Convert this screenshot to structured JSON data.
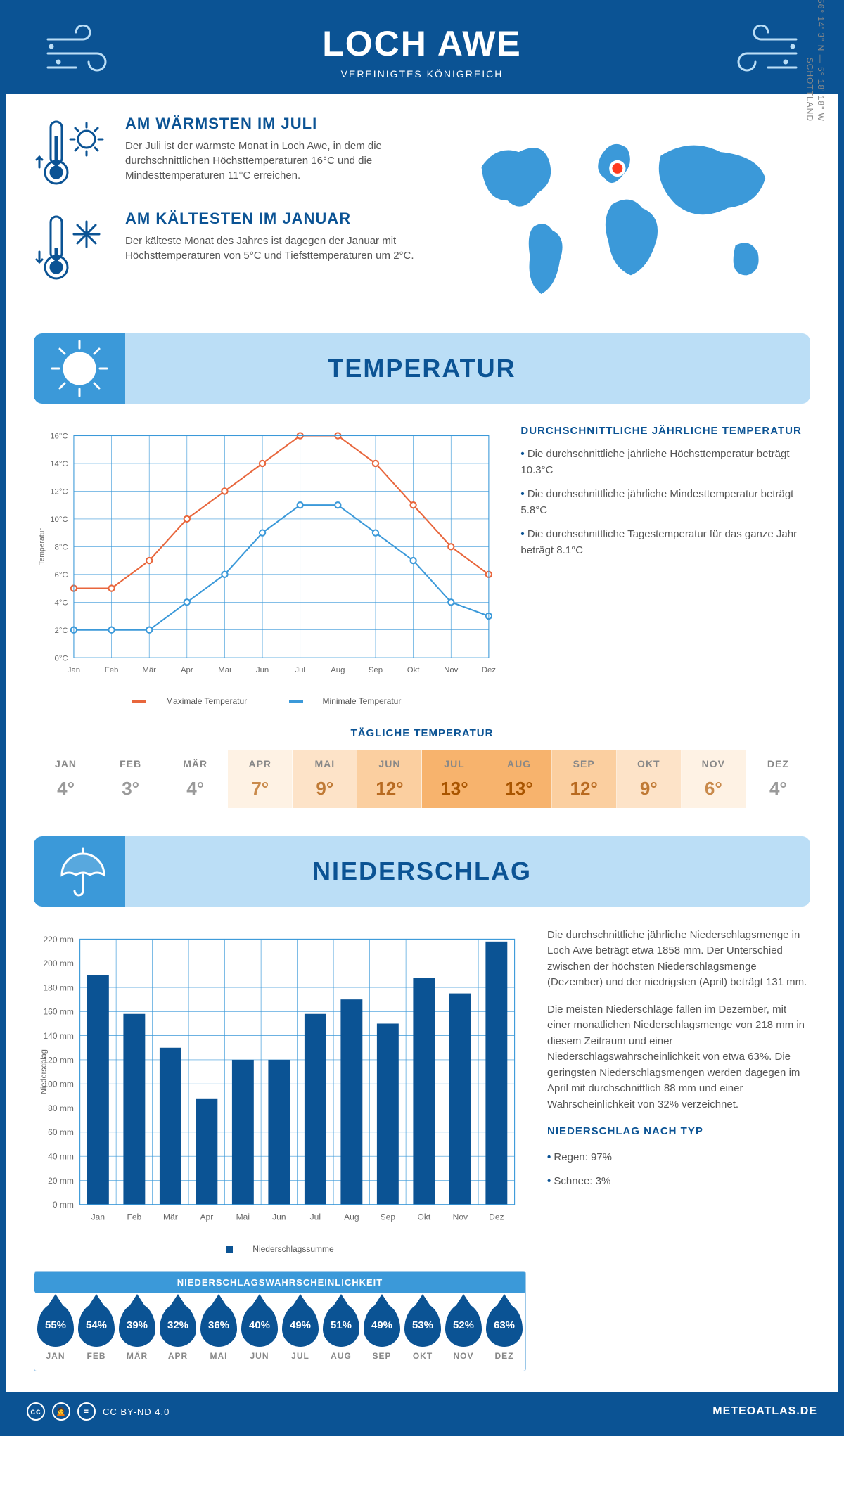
{
  "header": {
    "title": "LOCH AWE",
    "subtitle": "VEREINIGTES KÖNIGREICH"
  },
  "location": {
    "coords": "56° 14' 3\" N — 5° 18' 18\" W",
    "region": "SCHOTTLAND",
    "marker_color": "#ff3b1f",
    "map_color": "#3b99d9"
  },
  "colors": {
    "primary": "#0b5394",
    "accent": "#3b99d9",
    "band_light": "#bbdef6",
    "text_muted": "#777777",
    "max_temp_line": "#e8663c",
    "min_temp_line": "#3b99d9",
    "grid": "#3b99d9"
  },
  "facts": {
    "warmest": {
      "title": "AM WÄRMSTEN IM JULI",
      "text": "Der Juli ist der wärmste Monat in Loch Awe, in dem die durchschnittlichen Höchsttemperaturen 16°C und die Mindesttemperaturen 11°C erreichen."
    },
    "coldest": {
      "title": "AM KÄLTESTEN IM JANUAR",
      "text": "Der kälteste Monat des Jahres ist dagegen der Januar mit Höchsttemperaturen von 5°C und Tiefsttemperaturen um 2°C."
    }
  },
  "temperature": {
    "section_title": "TEMPERATUR",
    "facts_title": "DURCHSCHNITTLICHE JÄHRLICHE TEMPERATUR",
    "facts": [
      "Die durchschnittliche jährliche Höchsttemperatur beträgt 10.3°C",
      "Die durchschnittliche jährliche Mindesttemperatur beträgt 5.8°C",
      "Die durchschnittliche Tagestemperatur für das ganze Jahr beträgt 8.1°C"
    ],
    "chart": {
      "type": "line",
      "months": [
        "Jan",
        "Feb",
        "Mär",
        "Apr",
        "Mai",
        "Jun",
        "Jul",
        "Aug",
        "Sep",
        "Okt",
        "Nov",
        "Dez"
      ],
      "max_series": [
        5,
        5,
        7,
        10,
        12,
        14,
        16,
        16,
        14,
        11,
        8,
        6
      ],
      "min_series": [
        2,
        2,
        2,
        4,
        6,
        9,
        11,
        11,
        9,
        7,
        4,
        3
      ],
      "ylim": [
        0,
        16
      ],
      "ytick_step": 2,
      "ylabel": "Temperatur",
      "legend_max": "Maximale Temperatur",
      "legend_min": "Minimale Temperatur",
      "line_width": 2,
      "marker_size": 4,
      "grid_color": "#3b99d9",
      "background": "#ffffff",
      "axis_fontsize": 11
    },
    "daily": {
      "title": "TÄGLICHE TEMPERATUR",
      "months": [
        "JAN",
        "FEB",
        "MÄR",
        "APR",
        "MAI",
        "JUN",
        "JUL",
        "AUG",
        "SEP",
        "OKT",
        "NOV",
        "DEZ"
      ],
      "values": [
        "4°",
        "3°",
        "4°",
        "7°",
        "9°",
        "12°",
        "13°",
        "13°",
        "12°",
        "9°",
        "6°",
        "4°"
      ],
      "cell_colors": [
        "#ffffff",
        "#ffffff",
        "#ffffff",
        "#fef2e4",
        "#fde3c8",
        "#fbcfa0",
        "#f7b36d",
        "#f7b36d",
        "#fbcfa0",
        "#fde3c8",
        "#fef2e4",
        "#ffffff"
      ],
      "text_colors": [
        "#9a9a9a",
        "#9a9a9a",
        "#9a9a9a",
        "#c98a4b",
        "#c07a35",
        "#b86a20",
        "#a95500",
        "#a95500",
        "#b86a20",
        "#c07a35",
        "#c98a4b",
        "#9a9a9a"
      ]
    }
  },
  "precipitation": {
    "section_title": "NIEDERSCHLAG",
    "chart": {
      "type": "bar",
      "months": [
        "Jan",
        "Feb",
        "Mär",
        "Apr",
        "Mai",
        "Jun",
        "Jul",
        "Aug",
        "Sep",
        "Okt",
        "Nov",
        "Dez"
      ],
      "values": [
        190,
        158,
        130,
        88,
        120,
        120,
        158,
        170,
        150,
        188,
        175,
        218
      ],
      "ylim": [
        0,
        220
      ],
      "ytick_step": 20,
      "ylabel": "Niederschlag",
      "bar_color": "#0b5394",
      "legend": "Niederschlagssumme",
      "grid_color": "#3b99d9",
      "background": "#ffffff",
      "bar_width": 0.6,
      "axis_fontsize": 11
    },
    "text_p1": "Die durchschnittliche jährliche Niederschlagsmenge in Loch Awe beträgt etwa 1858 mm. Der Unterschied zwischen der höchsten Niederschlagsmenge (Dezember) und der niedrigsten (April) beträgt 131 mm.",
    "text_p2": "Die meisten Niederschläge fallen im Dezember, mit einer monatlichen Niederschlagsmenge von 218 mm in diesem Zeitraum und einer Niederschlagswahrscheinlichkeit von etwa 63%. Die geringsten Niederschlagsmengen werden dagegen im April mit durchschnittlich 88 mm und einer Wahrscheinlichkeit von 32% verzeichnet.",
    "by_type_title": "NIEDERSCHLAG NACH TYP",
    "by_type": [
      "Regen: 97%",
      "Schnee: 3%"
    ],
    "probability": {
      "title": "NIEDERSCHLAGSWAHRSCHEINLICHKEIT",
      "months": [
        "JAN",
        "FEB",
        "MÄR",
        "APR",
        "MAI",
        "JUN",
        "JUL",
        "AUG",
        "SEP",
        "OKT",
        "NOV",
        "DEZ"
      ],
      "values": [
        "55%",
        "54%",
        "39%",
        "32%",
        "36%",
        "40%",
        "49%",
        "51%",
        "49%",
        "53%",
        "52%",
        "63%"
      ],
      "drop_color": "#0b5394"
    }
  },
  "footer": {
    "license": "CC BY-ND 4.0",
    "site": "METEOATLAS.DE"
  }
}
